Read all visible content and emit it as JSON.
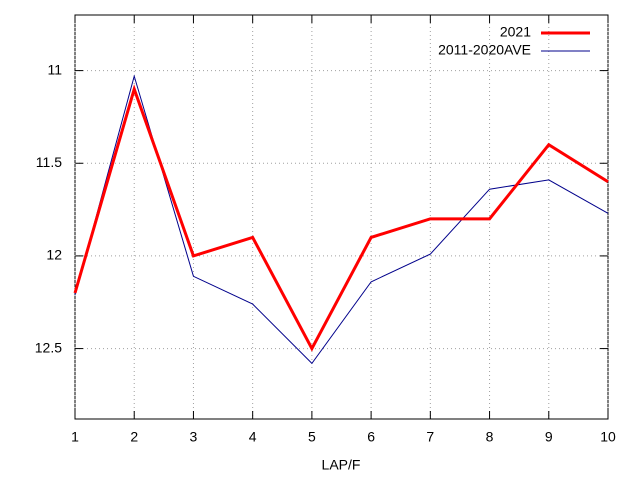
{
  "chart_data": {
    "type": "line",
    "x_label": "LAP/F",
    "x": [
      1,
      2,
      3,
      4,
      5,
      6,
      7,
      8,
      9,
      10
    ],
    "xlim": [
      1,
      10
    ],
    "xticks": [
      1,
      2,
      3,
      4,
      5,
      6,
      7,
      8,
      9,
      10
    ],
    "ylim": [
      10.7,
      12.88
    ],
    "yticks": [
      11,
      11.5,
      12,
      12.5
    ],
    "y_inverted": true,
    "grid": true,
    "legend": "top-right",
    "series": [
      {
        "name": "2021",
        "color": "#ff0000",
        "width": 3,
        "values": [
          12.2,
          11.1,
          12.0,
          11.9,
          12.5,
          11.9,
          11.8,
          11.8,
          11.4,
          11.6
        ]
      },
      {
        "name": "2011-2020AVE",
        "color": "#00008b",
        "width": 1,
        "values": [
          12.21,
          11.03,
          12.11,
          12.26,
          12.58,
          12.14,
          11.99,
          11.64,
          11.59,
          11.77
        ]
      }
    ]
  }
}
